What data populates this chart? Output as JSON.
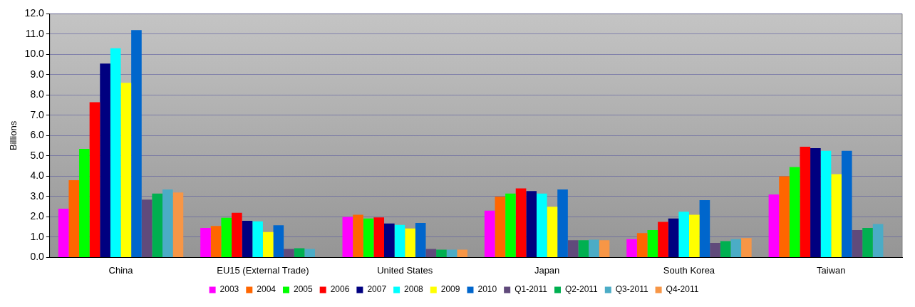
{
  "chart_data": {
    "type": "bar",
    "ylabel": "Billions",
    "categories": [
      "China",
      "EU15 (External Trade)",
      "United States",
      "Japan",
      "South Korea",
      "Taiwan"
    ],
    "series": [
      {
        "name": "2003",
        "color": "#ff00ff",
        "values": [
          2.4,
          1.45,
          2.0,
          2.3,
          0.9,
          3.1
        ]
      },
      {
        "name": "2004",
        "color": "#ff6600",
        "values": [
          3.8,
          1.55,
          2.1,
          3.0,
          1.2,
          4.0
        ]
      },
      {
        "name": "2005",
        "color": "#00ff00",
        "values": [
          5.35,
          1.95,
          1.92,
          3.15,
          1.35,
          4.45
        ]
      },
      {
        "name": "2006",
        "color": "#ff0000",
        "values": [
          7.65,
          2.2,
          1.97,
          3.4,
          1.75,
          5.45
        ]
      },
      {
        "name": "2007",
        "color": "#000080",
        "values": [
          9.55,
          1.8,
          1.67,
          3.27,
          1.92,
          5.38
        ]
      },
      {
        "name": "2008",
        "color": "#00ffff",
        "values": [
          10.3,
          1.78,
          1.6,
          3.15,
          2.25,
          5.25
        ]
      },
      {
        "name": "2009",
        "color": "#ffff00",
        "values": [
          8.6,
          1.25,
          1.43,
          2.5,
          2.1,
          4.1
        ]
      },
      {
        "name": "2010",
        "color": "#0066cc",
        "values": [
          11.2,
          1.58,
          1.7,
          3.35,
          2.82,
          5.25
        ]
      },
      {
        "name": "Q1-2011",
        "color": "#604a7b",
        "values": [
          2.85,
          0.42,
          0.42,
          0.85,
          0.72,
          1.35
        ]
      },
      {
        "name": "Q2-2011",
        "color": "#00b050",
        "values": [
          3.15,
          0.45,
          0.38,
          0.85,
          0.8,
          1.45
        ]
      },
      {
        "name": "Q3-2011",
        "color": "#4bacc6",
        "values": [
          3.35,
          0.42,
          0.38,
          0.87,
          0.9,
          1.65
        ]
      },
      {
        "name": "Q4-2011",
        "color": "#f79646",
        "values": [
          3.2,
          null,
          0.38,
          0.85,
          0.95,
          null
        ]
      }
    ],
    "ylim": [
      0,
      12
    ],
    "yticks": [
      {
        "value": 0,
        "label": "0.0"
      },
      {
        "value": 1,
        "label": "1.0"
      },
      {
        "value": 2,
        "label": "2.0"
      },
      {
        "value": 3,
        "label": "3.0"
      },
      {
        "value": 4,
        "label": "4.0"
      },
      {
        "value": 5,
        "label": "5.0"
      },
      {
        "value": 6,
        "label": "6.0"
      },
      {
        "value": 7,
        "label": "7.0"
      },
      {
        "value": 8,
        "label": "8.0"
      },
      {
        "value": 9,
        "label": "9.0"
      },
      {
        "value": 10,
        "label": "10.0"
      },
      {
        "value": 11,
        "label": "11.0"
      },
      {
        "value": 12,
        "label": "12.0"
      }
    ],
    "grid": "y",
    "legend": "bottom"
  }
}
